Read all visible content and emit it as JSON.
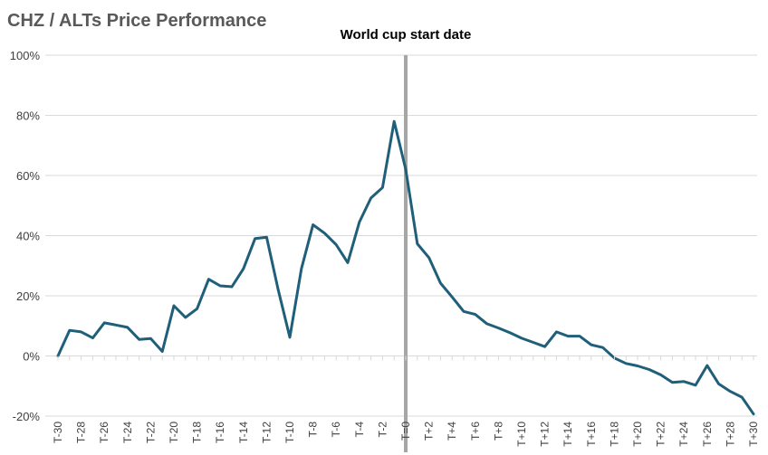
{
  "chart_data": {
    "type": "line",
    "title": "CHZ / ALTs Price Performance",
    "xlabel": "",
    "ylabel": "",
    "ylim": [
      -20,
      100
    ],
    "yticks": [
      -20,
      0,
      20,
      40,
      60,
      80,
      100
    ],
    "ytick_format": "percent",
    "grid": "horizontal",
    "legend": "none",
    "annotation": {
      "label": "World cup start date",
      "x": "T=0"
    },
    "colors": {
      "line": "#1f5f7a",
      "marker_line": "#a6a6a6",
      "grid": "#d9d9d9"
    },
    "categories": [
      "T-30",
      "T-29",
      "T-28",
      "T-27",
      "T-26",
      "T-25",
      "T-24",
      "T-23",
      "T-22",
      "T-21",
      "T-20",
      "T-19",
      "T-18",
      "T-17",
      "T-16",
      "T-15",
      "T-14",
      "T-13",
      "T-12",
      "T-11",
      "T-10",
      "T-9",
      "T-8",
      "T-7",
      "T-6",
      "T-5",
      "T-4",
      "T-3",
      "T-2",
      "T-1",
      "T=0",
      "T+1",
      "T+2",
      "T+3",
      "T+4",
      "T+5",
      "T+6",
      "T+7",
      "T+8",
      "T+9",
      "T+10",
      "T+11",
      "T+12",
      "T+13",
      "T+14",
      "T+15",
      "T+16",
      "T+17",
      "T+18",
      "T+19",
      "T+20",
      "T+21",
      "T+22",
      "T+23",
      "T+24",
      "T+25",
      "T+26",
      "T+27",
      "T+28",
      "T+29",
      "T+30"
    ],
    "xtick_labels": [
      "T-30",
      "T-28",
      "T-26",
      "T-24",
      "T-22",
      "T-20",
      "T-18",
      "T-16",
      "T-14",
      "T-12",
      "T-10",
      "T-8",
      "T-6",
      "T-4",
      "T-2",
      "T=0",
      "T+2",
      "T+4",
      "T+6",
      "T+8",
      "T+10",
      "T+12",
      "T+14",
      "T+16",
      "T+18",
      "T+20",
      "T+22",
      "T+24",
      "T+26",
      "T+28",
      "T+30"
    ],
    "series": [
      {
        "name": "CHZ / ALTs",
        "values": [
          0,
          8.5,
          8,
          6,
          11,
          10.3,
          9.5,
          5.5,
          5.8,
          1.5,
          16.7,
          12.8,
          15.7,
          25.5,
          23.3,
          23,
          29,
          39,
          39.5,
          22,
          6.2,
          29,
          43.6,
          40.8,
          37,
          31,
          44.5,
          52.5,
          56,
          78,
          62,
          37.3,
          32.7,
          24.2,
          19.6,
          14.8,
          13.8,
          10.7,
          9.3,
          7.7,
          5.9,
          4.5,
          3.1,
          8,
          6.6,
          6.6,
          3.7,
          2.8,
          -0.7,
          -2.5,
          -3.3,
          -4.5,
          -6.3,
          -8.8,
          -8.5,
          -9.7,
          -3.2,
          -9.3,
          -11.8,
          -13.7,
          -19.3
        ]
      }
    ]
  }
}
